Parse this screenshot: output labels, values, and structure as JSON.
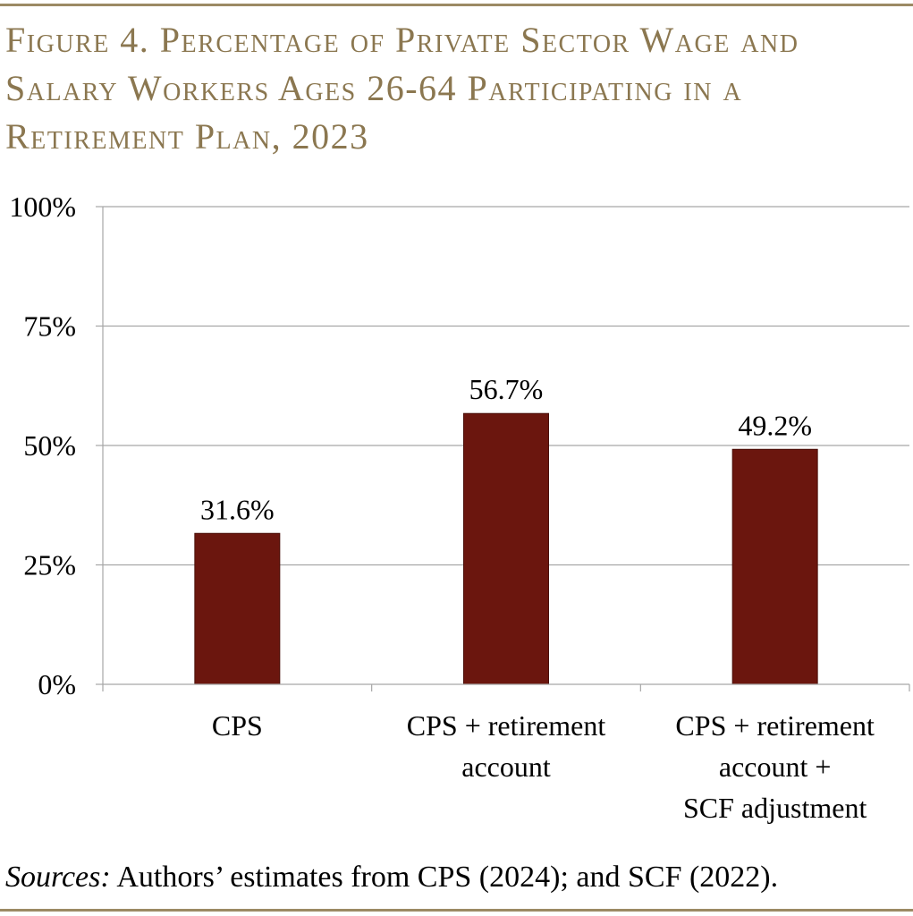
{
  "figure": {
    "title": "Figure 4. Percentage of Private Sector Wage and Salary Workers Ages 26-64 Participating in a Retirement Plan, 2023"
  },
  "source": {
    "label": "Sources:",
    "text": " Authors’ estimates from CPS (2024); and SCF (2022)."
  },
  "colors": {
    "bar": "#6b160e",
    "title": "#8b7750",
    "grid": "#a6a6a6"
  },
  "chart_data": {
    "type": "bar",
    "title": "Figure 4. Percentage of Private Sector Wage and Salary Workers Ages 26-64 Participating in a Retirement Plan, 2023",
    "categories": [
      [
        "CPS"
      ],
      [
        "CPS + retirement",
        "account"
      ],
      [
        "CPS + retirement",
        "account +",
        "SCF adjustment"
      ]
    ],
    "values": [
      31.6,
      56.7,
      49.2
    ],
    "data_labels": [
      "31.6%",
      "56.7%",
      "49.2%"
    ],
    "ylim": [
      0,
      100
    ],
    "yticks": [
      0,
      25,
      50,
      75,
      100
    ],
    "ytick_labels": [
      "0%",
      "25%",
      "50%",
      "75%",
      "100%"
    ],
    "xlabel": "",
    "ylabel": "",
    "grid": true,
    "legend": "none"
  }
}
